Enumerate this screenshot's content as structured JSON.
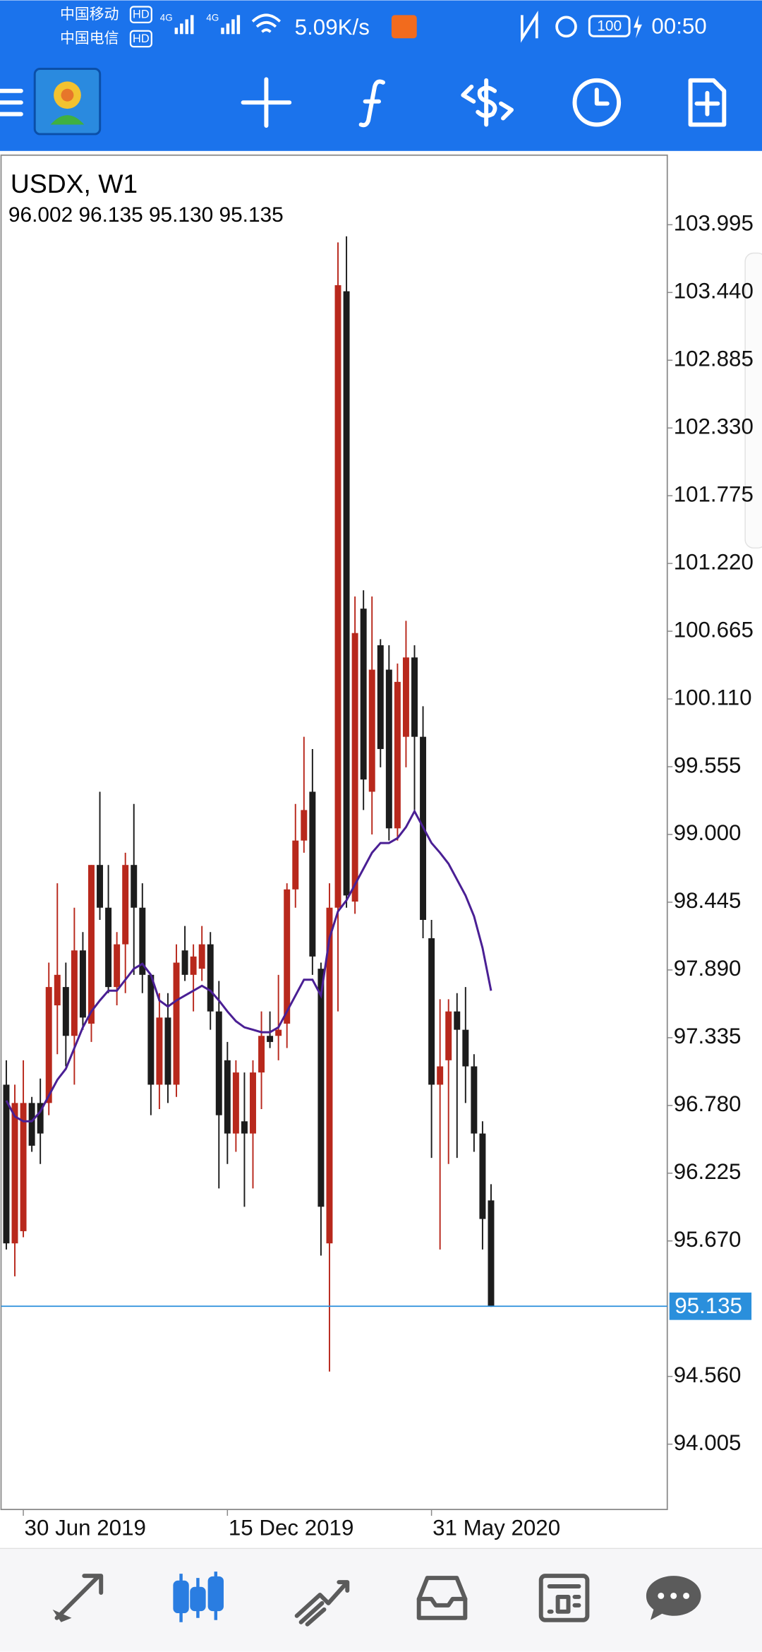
{
  "status_bar": {
    "carrier_1": "中国移动",
    "carrier_2": "中国电信",
    "hd": "HD",
    "network": "4G",
    "speed": "5.09K/s",
    "battery": "100",
    "time": "00:50"
  },
  "chart_data": {
    "type": "candlestick",
    "title": "USDX, W1",
    "subtitle": "96.002 96.135 95.130 95.135",
    "categories": [
      null,
      null,
      "30 Jun 2019",
      null,
      null,
      null,
      null,
      null,
      null,
      null,
      null,
      null,
      null,
      null,
      null,
      null,
      null,
      null,
      null,
      null,
      null,
      null,
      null,
      null,
      null,
      null,
      "15 Dec 2019",
      null,
      null,
      null,
      null,
      null,
      null,
      null,
      null,
      null,
      null,
      null,
      null,
      null,
      null,
      null,
      null,
      null,
      null,
      null,
      null,
      null,
      null,
      null,
      "31 May 2020",
      null,
      null,
      null,
      null,
      null,
      null,
      null
    ],
    "open": [
      96.95,
      95.65,
      95.75,
      96.8,
      96.8,
      96.8,
      97.6,
      97.75,
      97.35,
      98.05,
      97.45,
      98.75,
      98.4,
      97.75,
      98.1,
      98.75,
      98.4,
      97.85,
      96.95,
      97.5,
      96.95,
      98.05,
      97.85,
      97.9,
      98.1,
      97.55,
      97.15,
      96.55,
      96.65,
      96.55,
      97.05,
      97.35,
      97.35,
      97.45,
      98.55,
      98.95,
      99.35,
      97.9,
      95.65,
      98.4,
      103.45,
      98.45,
      100.85,
      99.35,
      100.55,
      100.35,
      99.05,
      99.8,
      100.45,
      99.8,
      98.15,
      96.95,
      97.15,
      97.55,
      97.4,
      97.1,
      96.55,
      96.002
    ],
    "high": [
      97.15,
      96.95,
      97.15,
      96.85,
      97.0,
      97.95,
      98.6,
      97.95,
      98.4,
      98.2,
      98.75,
      99.35,
      98.75,
      98.2,
      98.85,
      99.25,
      98.6,
      97.85,
      97.7,
      97.7,
      98.1,
      98.25,
      98.1,
      98.25,
      98.2,
      97.8,
      97.3,
      97.15,
      97.05,
      97.15,
      97.55,
      97.55,
      97.85,
      98.6,
      99.25,
      99.8,
      99.7,
      97.95,
      98.6,
      103.85,
      103.9,
      100.95,
      101.0,
      100.95,
      100.6,
      100.55,
      100.4,
      100.75,
      100.55,
      100.05,
      98.3,
      97.65,
      97.65,
      97.7,
      97.75,
      97.2,
      96.65,
      96.135
    ],
    "low": [
      95.6,
      95.38,
      95.7,
      96.4,
      96.3,
      96.7,
      97.2,
      97.1,
      96.95,
      97.4,
      97.3,
      98.3,
      97.7,
      97.6,
      97.7,
      97.85,
      97.7,
      96.7,
      96.75,
      96.8,
      96.85,
      97.8,
      97.55,
      97.8,
      97.4,
      96.1,
      96.3,
      96.4,
      95.95,
      96.1,
      96.75,
      97.25,
      97.15,
      97.25,
      98.4,
      98.85,
      97.85,
      95.55,
      94.6,
      97.55,
      98.4,
      98.35,
      99.2,
      99.0,
      99.55,
      98.95,
      98.95,
      99.55,
      99.2,
      98.15,
      96.35,
      95.6,
      96.3,
      96.35,
      96.8,
      96.4,
      95.6,
      95.13
    ],
    "close": [
      95.65,
      96.8,
      96.8,
      96.45,
      96.55,
      97.75,
      97.85,
      97.35,
      98.05,
      97.5,
      98.75,
      98.4,
      97.75,
      98.1,
      98.75,
      98.4,
      97.85,
      96.95,
      97.5,
      96.95,
      97.95,
      97.85,
      98.0,
      98.1,
      97.55,
      96.7,
      96.55,
      97.05,
      96.55,
      97.05,
      97.35,
      97.3,
      97.4,
      98.55,
      98.95,
      99.2,
      98.0,
      95.95,
      98.4,
      103.5,
      98.5,
      100.65,
      99.45,
      100.35,
      99.7,
      99.05,
      100.25,
      100.45,
      99.8,
      98.3,
      96.95,
      97.1,
      97.55,
      97.4,
      97.1,
      96.55,
      95.85,
      95.135
    ],
    "ma": [
      96.82,
      96.69,
      96.65,
      96.65,
      96.73,
      96.86,
      96.99,
      97.08,
      97.25,
      97.42,
      97.55,
      97.64,
      97.72,
      97.72,
      97.81,
      97.9,
      97.94,
      97.85,
      97.64,
      97.59,
      97.64,
      97.68,
      97.72,
      97.76,
      97.72,
      97.64,
      97.55,
      97.47,
      97.42,
      97.4,
      97.38,
      97.38,
      97.42,
      97.55,
      97.68,
      97.81,
      97.81,
      97.68,
      98.15,
      98.37,
      98.46,
      98.59,
      98.72,
      98.85,
      98.93,
      98.93,
      98.97,
      99.06,
      99.19,
      99.06,
      98.93,
      98.85,
      98.76,
      98.63,
      98.5,
      98.33,
      98.07,
      97.72
    ],
    "up_color": "#b8281c",
    "down_color": "#1c1c1c",
    "ma_color": "#4a1f94",
    "last_price_color": "#2a8fdc",
    "last_price": 95.135,
    "ylim": [
      93.47,
      104.565
    ],
    "yticks": [
      94.005,
      {
        "value": 94.56,
        "label": "94.560"
      },
      {
        "value": 95.67,
        "label": "95.670"
      },
      96.225,
      {
        "value": 96.78,
        "label": "96.780"
      },
      97.335,
      {
        "value": 97.89,
        "label": "97.890"
      },
      98.445,
      {
        "value": 99,
        "label": "99.000"
      },
      99.555,
      {
        "value": 100.11,
        "label": "100.110"
      },
      100.665,
      {
        "value": 101.22,
        "label": "101.220"
      },
      101.775,
      {
        "value": 102.33,
        "label": "102.330"
      },
      102.885,
      {
        "value": 103.44,
        "label": "103.440"
      },
      103.995
    ]
  }
}
